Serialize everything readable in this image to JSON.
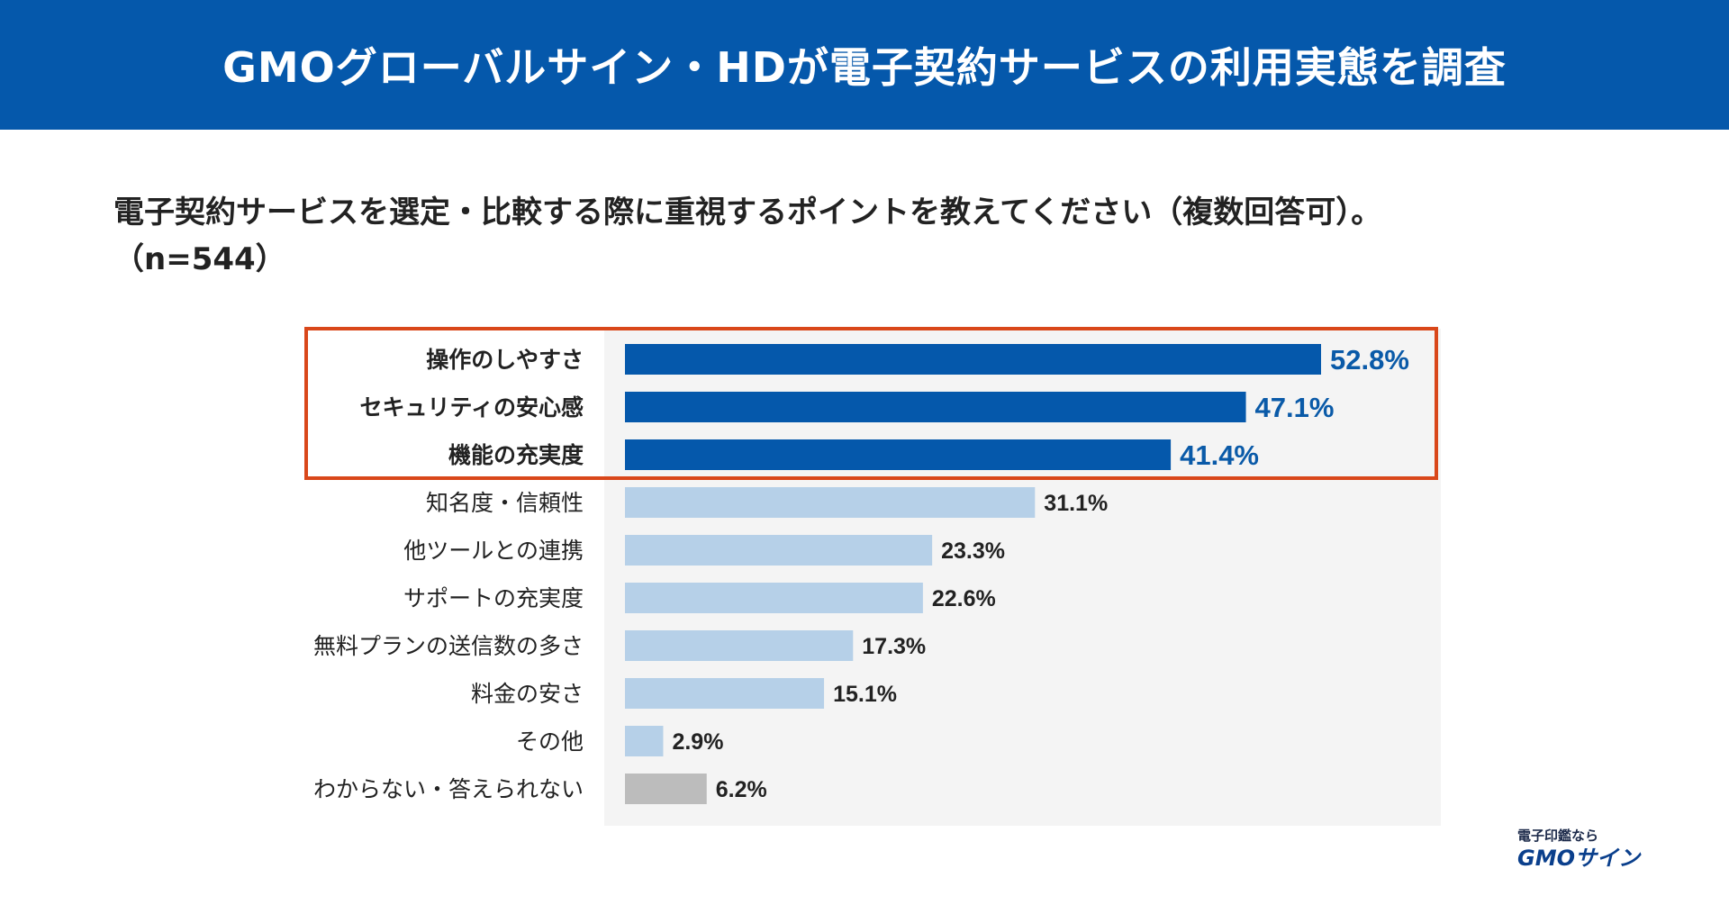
{
  "header": {
    "title": "GMOグローバルサイン・HDが電子契約サービスの利用実態を調査"
  },
  "question": {
    "line1": "電子契約サービスを選定・比較する際に重視するポイントを教えてください（複数回答可）。",
    "line2": "（n=544）"
  },
  "logo": {
    "tagline": "電子印鑑なら",
    "brand": "GMOサイン"
  },
  "colors": {
    "header_bg": "#0558ab",
    "top_bar": "#0558ab",
    "other_bar": "#b6d0e8",
    "unknown_bar": "#bcbcbc",
    "highlight_border": "#d9471a",
    "top_value_text": "#0a5aa8",
    "other_value_text": "#222222"
  },
  "chart_data": {
    "type": "bar",
    "orientation": "horizontal",
    "categories": [
      "操作のしやすさ",
      "セキュリティの安心感",
      "機能の充実度",
      "知名度・信頼性",
      "他ツールとの連携",
      "サポートの充実度",
      "無料プランの送信数の多さ",
      "料金の安さ",
      "その他",
      "わからない・答えられない"
    ],
    "values": [
      52.8,
      47.1,
      41.4,
      31.1,
      23.3,
      22.6,
      17.3,
      15.1,
      2.9,
      6.2
    ],
    "value_labels": [
      "52.8%",
      "47.1%",
      "41.4%",
      "31.1%",
      "23.3%",
      "22.6%",
      "17.3%",
      "15.1%",
      "2.9%",
      "6.2%"
    ],
    "highlighted": [
      true,
      true,
      true,
      false,
      false,
      false,
      false,
      false,
      false,
      false
    ],
    "unit": "%",
    "xlim": [
      0,
      62
    ],
    "grid": false,
    "legend": "none"
  }
}
